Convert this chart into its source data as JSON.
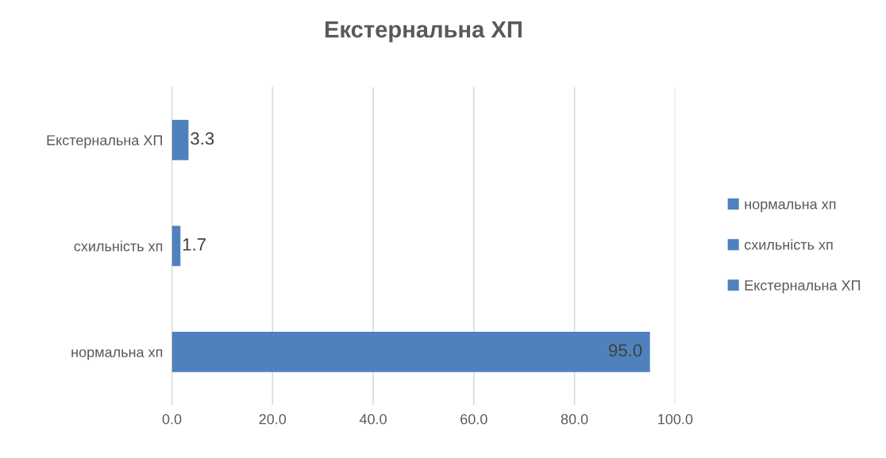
{
  "chart_data": {
    "type": "bar",
    "orientation": "horizontal",
    "stacked": true,
    "title": "Екстернальна ХП",
    "categories": [
      "Екстернальна ХП",
      "схильність хп",
      "нормальна хп"
    ],
    "series": [
      {
        "name": "нормальна хп",
        "color": "#4f81bd",
        "values": [
          null,
          null,
          95.0
        ],
        "value_labels": [
          null,
          null,
          "95.0"
        ]
      },
      {
        "name": "схильність хп",
        "color": "#4f81bd",
        "values": [
          null,
          1.7,
          null
        ],
        "value_labels": [
          null,
          "1.7",
          null
        ]
      },
      {
        "name": "Екстернальна ХП",
        "color": "#4f81bd",
        "values": [
          3.3,
          null,
          null
        ],
        "value_labels": [
          "3.3",
          null,
          null
        ]
      }
    ],
    "xlim": [
      0,
      100
    ],
    "xticks": [
      {
        "value": 0,
        "label": "0.0"
      },
      {
        "value": 20,
        "label": "20.0"
      },
      {
        "value": 40,
        "label": "40.0"
      },
      {
        "value": 60,
        "label": "60.0"
      },
      {
        "value": 80,
        "label": "80.0"
      },
      {
        "value": 100,
        "label": "100.0"
      }
    ],
    "grid": "x",
    "legend": "right"
  }
}
